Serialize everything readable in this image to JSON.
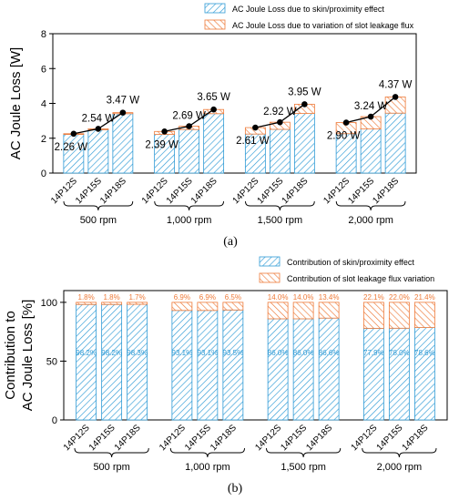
{
  "chart_data": [
    {
      "type": "bar",
      "panel_label": "(a)",
      "ylabel": "AC Joule Loss [W]",
      "ylim": [
        0,
        8
      ],
      "yticks": [
        0,
        2,
        4,
        6,
        8
      ],
      "grid": false,
      "stacked": true,
      "legend_position": "top-right",
      "groups": [
        {
          "label": "500 rpm",
          "categories": [
            "14P12S",
            "14P15S",
            "14P18S"
          ]
        },
        {
          "label": "1,000 rpm",
          "categories": [
            "14P12S",
            "14P15S",
            "14P18S"
          ]
        },
        {
          "label": "1,500 rpm",
          "categories": [
            "14P12S",
            "14P15S",
            "14P18S"
          ]
        },
        {
          "label": "2,000 rpm",
          "categories": [
            "14P12S",
            "14P15S",
            "14P18S"
          ]
        }
      ],
      "series": [
        {
          "name": "AC Joule Loss due to skin/proximity effect",
          "color": "#2f9bd6",
          "values": [
            [
              2.22,
              2.49,
              3.41
            ],
            [
              2.22,
              2.5,
              3.41
            ],
            [
              2.24,
              2.51,
              3.42
            ],
            [
              2.26,
              2.53,
              3.44
            ]
          ]
        },
        {
          "name": "AC Joule Loss due to variation of slot leakage flux",
          "color": "#ee7b3a",
          "values": [
            [
              0.04,
              0.05,
              0.06
            ],
            [
              0.17,
              0.19,
              0.24
            ],
            [
              0.37,
              0.41,
              0.53
            ],
            [
              0.64,
              0.71,
              0.93
            ]
          ]
        }
      ],
      "line": {
        "values": [
          [
            2.26,
            2.54,
            3.47
          ],
          [
            2.39,
            2.69,
            3.65
          ],
          [
            2.61,
            2.92,
            3.95
          ],
          [
            2.9,
            3.24,
            4.37
          ]
        ],
        "labels": [
          [
            "2.26 W",
            "2.54 W",
            "3.47 W"
          ],
          [
            "2.39 W",
            "2.69 W",
            "3.65 W"
          ],
          [
            "2.61 W",
            "2.92 W",
            "3.95 W"
          ],
          [
            "2.90 W",
            "3.24 W",
            "4.37 W"
          ]
        ]
      }
    },
    {
      "type": "bar",
      "panel_label": "(b)",
      "ylabel": [
        "Contribution to",
        "AC Joule Loss [%]"
      ],
      "ylim": [
        0,
        110
      ],
      "yticks": [
        0,
        50,
        100
      ],
      "grid": false,
      "stacked": true,
      "legend_position": "top-right",
      "groups": [
        {
          "label": "500 rpm",
          "categories": [
            "14P12S",
            "14P15S",
            "14P18S"
          ]
        },
        {
          "label": "1,000 rpm",
          "categories": [
            "14P12S",
            "14P15S",
            "14P18S"
          ]
        },
        {
          "label": "1,500 rpm",
          "categories": [
            "14P12S",
            "14P15S",
            "14P18S"
          ]
        },
        {
          "label": "2,000 rpm",
          "categories": [
            "14P12S",
            "14P15S",
            "14P18S"
          ]
        }
      ],
      "series": [
        {
          "name": "Contribution of skin/proximity effect",
          "color": "#2f9bd6",
          "values": [
            [
              98.2,
              98.2,
              98.3
            ],
            [
              93.1,
              93.1,
              93.5
            ],
            [
              86.0,
              86.0,
              86.6
            ],
            [
              77.9,
              78.0,
              78.6
            ]
          ],
          "labels": [
            [
              "98.2%",
              "98.2%",
              "98.3%"
            ],
            [
              "93.1%",
              "93.1%",
              "93.5%"
            ],
            [
              "86.0%",
              "86.0%",
              "86.6%"
            ],
            [
              "77.9%",
              "78.0%",
              "78.6%"
            ]
          ]
        },
        {
          "name": "Contribution of slot leakage flux variation",
          "color": "#ee7b3a",
          "values": [
            [
              1.8,
              1.8,
              1.7
            ],
            [
              6.9,
              6.9,
              6.5
            ],
            [
              14.0,
              14.0,
              13.4
            ],
            [
              22.1,
              22.0,
              21.4
            ]
          ],
          "labels": [
            [
              "1.8%",
              "1.8%",
              "1.7%"
            ],
            [
              "6.9%",
              "6.9%",
              "6.5%"
            ],
            [
              "14.0%",
              "14.0%",
              "13.4%"
            ],
            [
              "22.1%",
              "22.0%",
              "21.4%"
            ]
          ]
        }
      ]
    }
  ]
}
